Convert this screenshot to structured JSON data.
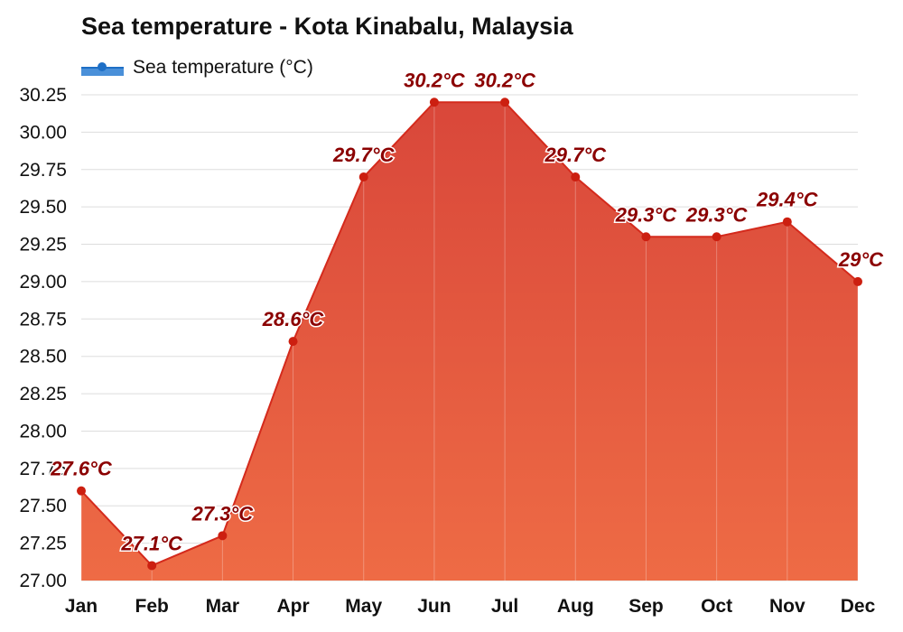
{
  "chart_data": {
    "type": "area",
    "title": "Sea temperature - Kota Kinabalu, Malaysia",
    "legend": {
      "label": "Sea temperature (°C)",
      "position": "top-left"
    },
    "categories": [
      "Jan",
      "Feb",
      "Mar",
      "Apr",
      "May",
      "Jun",
      "Jul",
      "Aug",
      "Sep",
      "Oct",
      "Nov",
      "Dec"
    ],
    "series": [
      {
        "name": "Sea temperature (°C)",
        "values": [
          27.6,
          27.1,
          27.3,
          28.6,
          29.7,
          30.2,
          30.2,
          29.7,
          29.3,
          29.3,
          29.4,
          29.0
        ],
        "labels": [
          "27.6°C",
          "27.1°C",
          "27.3°C",
          "28.6°C",
          "29.7°C",
          "30.2°C",
          "30.2°C",
          "29.7°C",
          "29.3°C",
          "29.3°C",
          "29.4°C",
          "29°C"
        ]
      }
    ],
    "y_ticks": [
      "27.00",
      "27.25",
      "27.50",
      "27.75",
      "28.00",
      "28.25",
      "28.50",
      "28.75",
      "29.00",
      "29.25",
      "29.50",
      "29.75",
      "30.00",
      "30.25"
    ],
    "ylim": [
      27.0,
      30.25
    ],
    "grid": true,
    "colors": {
      "fill_top": "#d9473a",
      "fill_bottom": "#ee6b45",
      "line": "#d42a1c",
      "marker": "#cc1f10",
      "data_label": "#8b0000",
      "legend_fill": "#4a90d9",
      "legend_marker": "#1e6fc6"
    }
  }
}
